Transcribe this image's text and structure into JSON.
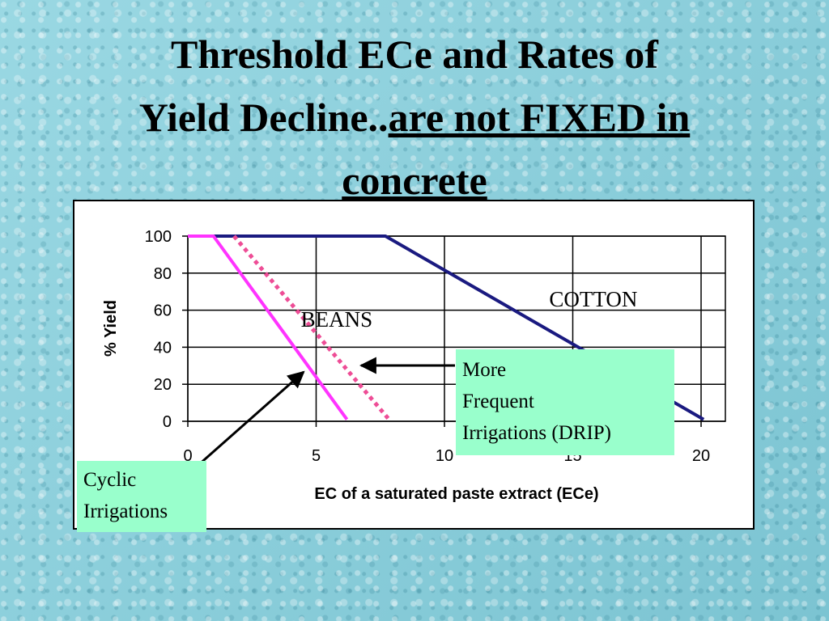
{
  "slide": {
    "title_line1": "Threshold ECe and Rates of",
    "title_line2_plain": "Yield Decline..",
    "title_line2_underlined": "are not FIXED in",
    "title_line3_underlined": "concrete"
  },
  "chart_data": {
    "type": "line",
    "xlabel": "EC of a saturated paste extract (ECe)",
    "ylabel": "% Yield",
    "xlim": [
      0,
      20
    ],
    "ylim": [
      0,
      100
    ],
    "x_ticks": [
      0,
      5,
      10,
      15,
      20
    ],
    "y_ticks": [
      0,
      20,
      40,
      60,
      80,
      100
    ],
    "grid": true,
    "series": [
      {
        "name": "COTTON",
        "style": "solid",
        "color": "#1a1a80",
        "points": [
          [
            0,
            100
          ],
          [
            7.7,
            100
          ],
          [
            20.1,
            1
          ]
        ]
      },
      {
        "name": "BEANS",
        "style": "solid",
        "color": "#ff33ff",
        "points": [
          [
            0,
            100
          ],
          [
            1,
            100
          ],
          [
            6.2,
            1
          ]
        ]
      },
      {
        "name": "",
        "style": "dotted",
        "color": "#ee4d96",
        "points": [
          [
            1.8,
            100
          ],
          [
            7.9,
            0
          ]
        ]
      }
    ],
    "annotations": [
      {
        "text": "COTTON",
        "x": 15.8,
        "y": 62
      },
      {
        "text": "BEANS",
        "x": 5.8,
        "y": 51
      }
    ]
  },
  "callouts": {
    "drip": [
      "More",
      "Frequent",
      "Irrigations (DRIP)"
    ],
    "cyclic": [
      "Cyclic",
      "Irrigations"
    ]
  },
  "colors": {
    "callout_fill": "#99ffcc",
    "arrow": "#000000"
  }
}
